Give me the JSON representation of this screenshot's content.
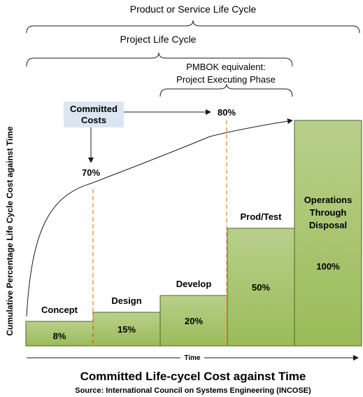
{
  "chart_data": {
    "type": "bar",
    "title": "Committed Life-cycel Cost against Time",
    "source": "Source: International Council on Systems Engineering (INCOSE)",
    "xlabel": "Time",
    "ylabel": "Cumulative Percentage Life Cycle Cost against Time",
    "categories": [
      "Concept",
      "Design",
      "Develop",
      "Prod/Test",
      "Operations Through Disposal"
    ],
    "values": [
      8,
      15,
      20,
      50,
      100
    ],
    "value_labels": [
      "8%",
      "15%",
      "20%",
      "50%",
      "100%"
    ],
    "ylim": [
      0,
      100
    ],
    "series": [
      {
        "values": [
          8,
          15,
          20,
          50,
          100
        ]
      }
    ],
    "committed_costs_curve": {
      "label": "Committed Costs",
      "markers": [
        "70%",
        "80%"
      ]
    },
    "brackets": {
      "product_life_cycle": "Product or Service Life Cycle",
      "project_life_cycle": "Project Life Cycle",
      "pmbok_line1": "PMBOK equivalent:",
      "pmbok_line2": "Project Executing Phase"
    },
    "colors": {
      "bar_fill": "#9bbb59",
      "bar_fill_light": "#b8d08a",
      "bar_stroke": "#4f6228",
      "dash": "#f79646",
      "callout_fill": "#dce6f2",
      "curve": "#1a1a1a"
    }
  }
}
